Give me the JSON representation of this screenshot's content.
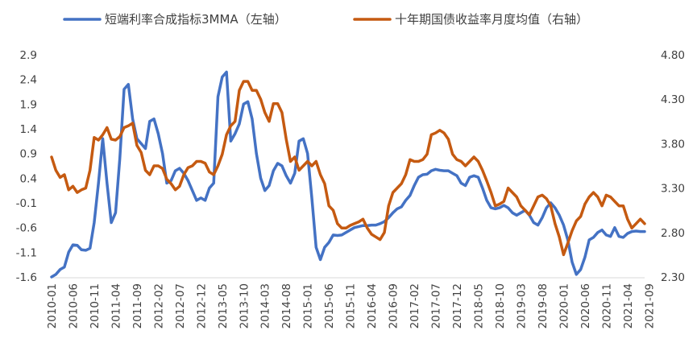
{
  "chart_data": {
    "type": "line",
    "legend": {
      "position": "top",
      "entries": [
        {
          "label": "短端利率合成指标3MMA（左轴）",
          "color": "#4472C4"
        },
        {
          "label": "十年期国债收益率月度均值（右轴）",
          "color": "#C55A11"
        }
      ]
    },
    "grid": false,
    "x_tick_labels": [
      "2010-01",
      "2010-06",
      "2010-11",
      "2011-04",
      "2011-09",
      "2012-02",
      "2012-07",
      "2012-12",
      "2013-05",
      "2013-10",
      "2014-03",
      "2014-08",
      "2015-01",
      "2015-06",
      "2015-11",
      "2016-04",
      "2016-09",
      "2017-02",
      "2017-07",
      "2017-12",
      "2018-05",
      "2018-10",
      "2019-03",
      "2019-08",
      "2020-01",
      "2020-06",
      "2020-11",
      "2021-04",
      "2021-09"
    ],
    "left_axis": {
      "min": -1.6,
      "max": 2.9,
      "tick_labels": [
        "2.9",
        "2.4",
        "1.9",
        "1.4",
        "0.9",
        "0.4",
        "-0.1",
        "-0.6",
        "-1.1",
        "-1.6"
      ],
      "tick_values": [
        2.9,
        2.4,
        1.9,
        1.4,
        0.9,
        0.4,
        -0.1,
        -0.6,
        -1.1,
        -1.6
      ]
    },
    "right_axis": {
      "min": 2.3,
      "max": 4.8,
      "tick_labels": [
        "4.80",
        "4.30",
        "3.80",
        "3.30",
        "2.80",
        "2.30"
      ],
      "tick_values": [
        4.8,
        4.3,
        3.8,
        3.3,
        2.8,
        2.3
      ]
    },
    "series": [
      {
        "name": "短端利率合成指标3MMA（左轴）",
        "axis": "left",
        "color": "#4472C4",
        "x_start": "2010-01",
        "values": [
          -1.6,
          -1.55,
          -1.45,
          -1.4,
          -1.1,
          -0.95,
          -0.96,
          -1.05,
          -1.06,
          -1.02,
          -0.5,
          0.3,
          1.2,
          0.3,
          -0.5,
          -0.3,
          0.8,
          2.2,
          2.3,
          1.6,
          1.2,
          1.1,
          1.0,
          1.55,
          1.6,
          1.3,
          0.9,
          0.3,
          0.35,
          0.55,
          0.6,
          0.5,
          0.35,
          0.15,
          -0.05,
          0.0,
          -0.05,
          0.2,
          0.3,
          2.05,
          2.45,
          2.55,
          1.15,
          1.3,
          1.5,
          1.9,
          1.95,
          1.6,
          0.9,
          0.4,
          0.15,
          0.25,
          0.55,
          0.7,
          0.65,
          0.45,
          0.3,
          0.5,
          1.15,
          1.2,
          0.9,
          0.0,
          -1.0,
          -1.25,
          -1.0,
          -0.9,
          -0.75,
          -0.76,
          -0.75,
          -0.7,
          -0.65,
          -0.6,
          -0.58,
          -0.56,
          -0.56,
          -0.55,
          -0.55,
          -0.52,
          -0.48,
          -0.4,
          -0.3,
          -0.22,
          -0.18,
          -0.05,
          0.05,
          0.25,
          0.42,
          0.47,
          0.48,
          0.55,
          0.58,
          0.56,
          0.55,
          0.55,
          0.5,
          0.45,
          0.3,
          0.25,
          0.42,
          0.45,
          0.42,
          0.2,
          -0.05,
          -0.2,
          -0.22,
          -0.2,
          -0.15,
          -0.2,
          -0.3,
          -0.35,
          -0.3,
          -0.25,
          -0.35,
          -0.5,
          -0.55,
          -0.4,
          -0.2,
          -0.1,
          -0.2,
          -0.35,
          -0.55,
          -0.85,
          -1.3,
          -1.55,
          -1.45,
          -1.2,
          -0.85,
          -0.8,
          -0.7,
          -0.65,
          -0.75,
          -0.78,
          -0.6,
          -0.78,
          -0.8,
          -0.72,
          -0.68,
          -0.67,
          -0.68,
          -0.68
        ]
      },
      {
        "name": "十年期国债收益率月度均值（右轴）",
        "axis": "right",
        "color": "#C55A11",
        "x_start": "2010-01",
        "values": [
          3.65,
          3.5,
          3.42,
          3.45,
          3.28,
          3.32,
          3.25,
          3.28,
          3.3,
          3.5,
          3.87,
          3.84,
          3.9,
          3.98,
          3.85,
          3.84,
          3.88,
          3.98,
          4.0,
          4.03,
          3.78,
          3.7,
          3.5,
          3.45,
          3.55,
          3.55,
          3.52,
          3.4,
          3.35,
          3.28,
          3.32,
          3.45,
          3.53,
          3.55,
          3.6,
          3.6,
          3.58,
          3.48,
          3.45,
          3.55,
          3.68,
          3.9,
          4.0,
          4.05,
          4.4,
          4.5,
          4.5,
          4.4,
          4.4,
          4.3,
          4.15,
          4.05,
          4.25,
          4.25,
          4.15,
          3.85,
          3.6,
          3.65,
          3.5,
          3.55,
          3.6,
          3.55,
          3.6,
          3.45,
          3.35,
          3.1,
          3.05,
          2.9,
          2.85,
          2.85,
          2.88,
          2.9,
          2.92,
          2.95,
          2.85,
          2.78,
          2.75,
          2.72,
          2.8,
          3.1,
          3.25,
          3.3,
          3.35,
          3.45,
          3.62,
          3.6,
          3.6,
          3.62,
          3.68,
          3.9,
          3.92,
          3.95,
          3.92,
          3.85,
          3.68,
          3.62,
          3.6,
          3.55,
          3.6,
          3.65,
          3.6,
          3.5,
          3.38,
          3.25,
          3.1,
          3.12,
          3.15,
          3.3,
          3.25,
          3.2,
          3.1,
          3.05,
          3.0,
          3.1,
          3.2,
          3.22,
          3.18,
          3.1,
          2.9,
          2.75,
          2.55,
          2.68,
          2.82,
          2.93,
          2.98,
          3.12,
          3.2,
          3.25,
          3.2,
          3.1,
          3.22,
          3.2,
          3.15,
          3.1,
          3.1,
          2.95,
          2.85,
          2.9,
          2.95,
          2.9
        ]
      }
    ]
  }
}
